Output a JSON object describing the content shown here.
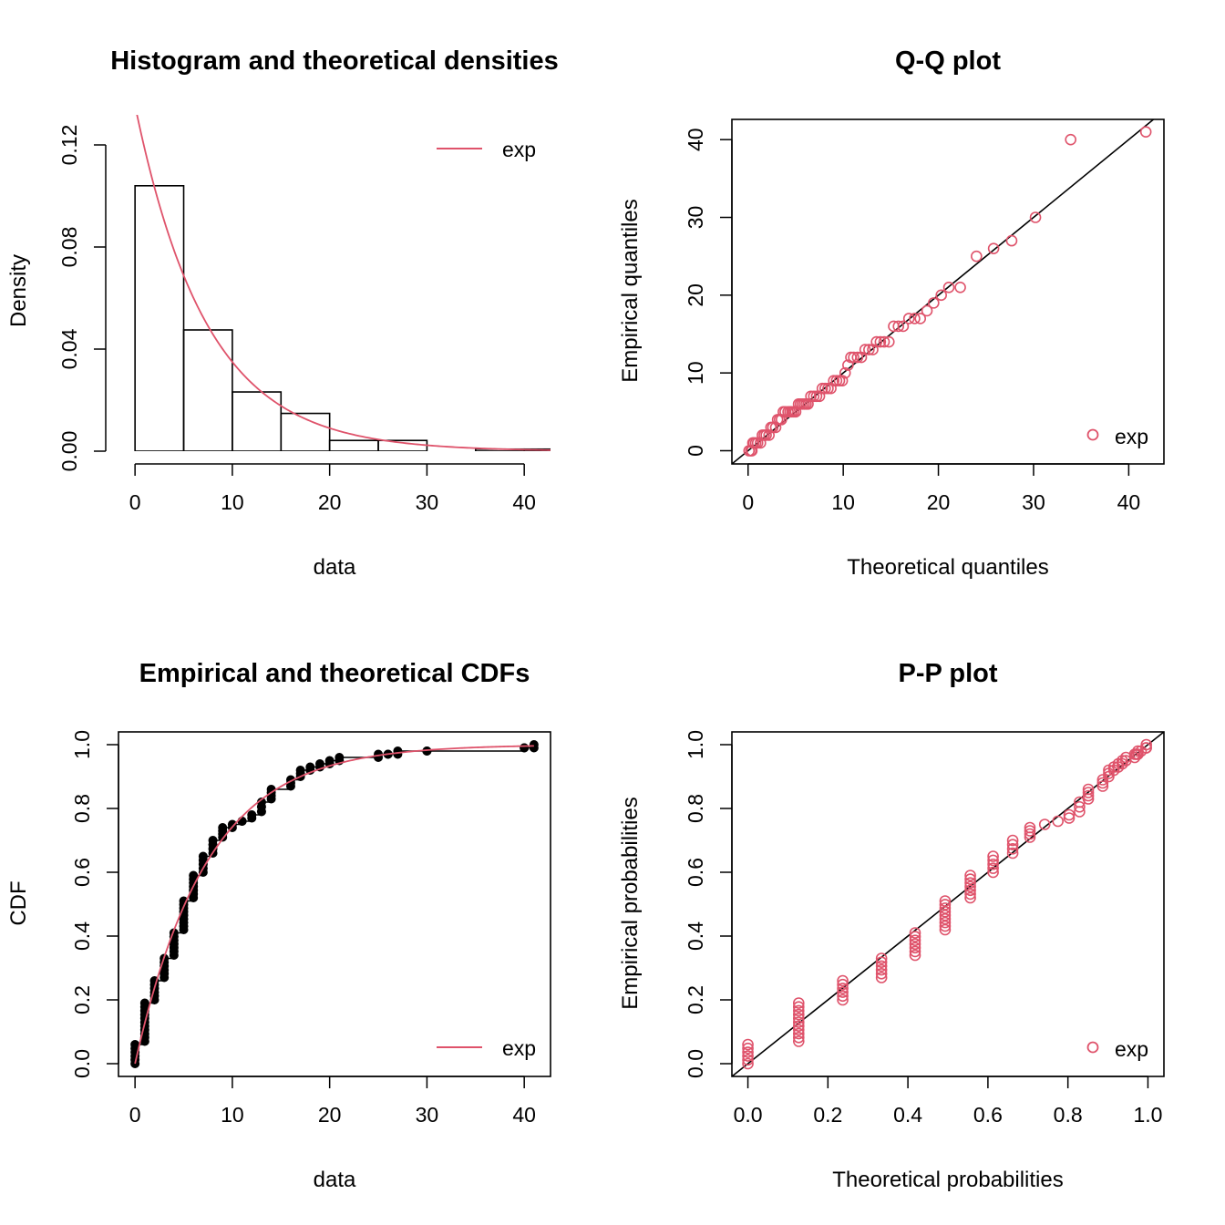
{
  "colors": {
    "fit": "#DF536B",
    "ink": "#000000",
    "background": "#FFFFFF"
  },
  "panels": [
    {
      "key": "hist",
      "title": "Histogram and theoretical densities",
      "xlabel": "data",
      "ylabel": "Density",
      "legend": "exp"
    },
    {
      "key": "qq",
      "title": "Q-Q plot",
      "xlabel": "Theoretical quantiles",
      "ylabel": "Empirical quantiles",
      "legend": "exp"
    },
    {
      "key": "cdf",
      "title": "Empirical and theoretical CDFs",
      "xlabel": "data",
      "ylabel": "CDF",
      "legend": "exp"
    },
    {
      "key": "pp",
      "title": "P-P plot",
      "xlabel": "Theoretical probabilities",
      "ylabel": "Empirical probabilities",
      "legend": "exp"
    }
  ],
  "chart_data": [
    {
      "panel": "hist",
      "type": "bar",
      "title": "Histogram and theoretical densities",
      "xlabel": "data",
      "ylabel": "Density",
      "xlim": [
        -1.7,
        42.7
      ],
      "ylim": [
        0,
        0.13
      ],
      "xticks": [
        "0",
        "10",
        "20",
        "30",
        "40"
      ],
      "xtick_values": [
        0,
        10,
        20,
        30,
        40
      ],
      "yticks": [
        "0.00",
        "0.04",
        "0.08",
        "0.12"
      ],
      "ytick_values": [
        0,
        0.04,
        0.08,
        0.12
      ],
      "bin_edges": [
        0,
        5,
        10,
        15,
        20,
        25,
        30,
        35,
        40,
        45
      ],
      "values": [
        0.104,
        0.0475,
        0.0232,
        0.0148,
        0.0042,
        0.0042,
        0.0,
        0.0008,
        0.0008
      ],
      "legend": "exp",
      "legend_position": "top-right",
      "curve": {
        "name": "exp",
        "distribution": "exponential",
        "rate": 0.1355
      }
    },
    {
      "panel": "qq",
      "type": "scatter",
      "title": "Q-Q plot",
      "xlabel": "Theoretical quantiles",
      "ylabel": "Empirical quantiles",
      "xlim": [
        -1.7,
        43.7
      ],
      "ylim": [
        -1.7,
        42.6
      ],
      "xticks": [
        "0",
        "10",
        "20",
        "30",
        "40"
      ],
      "xtick_values": [
        0,
        10,
        20,
        30,
        40
      ],
      "yticks": [
        "0",
        "10",
        "20",
        "30",
        "40"
      ],
      "ytick_values": [
        0,
        10,
        20,
        30,
        40
      ],
      "legend": "exp",
      "legend_position": "bottom-right",
      "reference_line": "y = x",
      "points": [
        [
          0.1,
          0
        ],
        [
          0.3,
          0
        ],
        [
          0.4,
          0
        ],
        [
          0.5,
          1
        ],
        [
          0.6,
          1
        ],
        [
          0.8,
          1
        ],
        [
          1.0,
          1
        ],
        [
          1.3,
          1
        ],
        [
          1.5,
          2
        ],
        [
          1.7,
          2
        ],
        [
          1.9,
          2
        ],
        [
          2.2,
          2
        ],
        [
          2.4,
          3
        ],
        [
          2.6,
          3
        ],
        [
          2.9,
          3
        ],
        [
          3.1,
          4
        ],
        [
          3.3,
          4
        ],
        [
          3.5,
          4
        ],
        [
          3.7,
          5
        ],
        [
          3.9,
          5
        ],
        [
          4.2,
          5
        ],
        [
          4.4,
          5
        ],
        [
          4.6,
          5
        ],
        [
          4.8,
          5
        ],
        [
          5.0,
          5
        ],
        [
          5.3,
          6
        ],
        [
          5.5,
          6
        ],
        [
          5.7,
          6
        ],
        [
          5.9,
          6
        ],
        [
          6.1,
          6
        ],
        [
          6.3,
          6
        ],
        [
          6.6,
          7
        ],
        [
          6.9,
          7
        ],
        [
          7.2,
          7
        ],
        [
          7.5,
          7
        ],
        [
          7.8,
          8
        ],
        [
          8.1,
          8
        ],
        [
          8.4,
          8
        ],
        [
          8.7,
          8
        ],
        [
          9.0,
          9
        ],
        [
          9.3,
          9
        ],
        [
          9.6,
          9
        ],
        [
          9.9,
          9
        ],
        [
          10.2,
          10
        ],
        [
          10.5,
          11
        ],
        [
          10.8,
          12
        ],
        [
          11.1,
          12
        ],
        [
          11.5,
          12
        ],
        [
          11.9,
          12
        ],
        [
          12.3,
          13
        ],
        [
          12.7,
          13
        ],
        [
          13.1,
          13
        ],
        [
          13.5,
          14
        ],
        [
          13.9,
          14
        ],
        [
          14.3,
          14
        ],
        [
          14.8,
          14
        ],
        [
          15.3,
          16
        ],
        [
          15.8,
          16
        ],
        [
          16.3,
          16
        ],
        [
          16.9,
          17
        ],
        [
          17.5,
          17
        ],
        [
          18.1,
          17
        ],
        [
          18.8,
          18
        ],
        [
          19.5,
          19
        ],
        [
          20.3,
          20
        ],
        [
          21.1,
          21
        ],
        [
          22.3,
          21
        ],
        [
          24.0,
          25
        ],
        [
          25.8,
          26
        ],
        [
          27.7,
          27
        ],
        [
          30.2,
          30
        ],
        [
          33.9,
          40
        ],
        [
          41.8,
          41
        ]
      ]
    },
    {
      "panel": "cdf",
      "type": "line",
      "title": "Empirical and theoretical CDFs",
      "xlabel": "data",
      "ylabel": "CDF",
      "xlim": [
        -1.7,
        42.7
      ],
      "ylim": [
        -0.04,
        1.04
      ],
      "xticks": [
        "0",
        "10",
        "20",
        "30",
        "40"
      ],
      "xtick_values": [
        0,
        10,
        20,
        30,
        40
      ],
      "yticks": [
        "0.0",
        "0.2",
        "0.4",
        "0.6",
        "0.8",
        "1.0"
      ],
      "ytick_values": [
        0,
        0.2,
        0.4,
        0.6,
        0.8,
        1.0
      ],
      "legend": "exp",
      "legend_position": "bottom-right",
      "empirical_steps": [
        [
          0,
          0.0,
          0.06
        ],
        [
          1,
          0.07,
          0.19
        ],
        [
          2,
          0.2,
          0.26
        ],
        [
          3,
          0.27,
          0.33
        ],
        [
          4,
          0.34,
          0.41
        ],
        [
          5,
          0.42,
          0.51
        ],
        [
          6,
          0.52,
          0.59
        ],
        [
          7,
          0.6,
          0.65
        ],
        [
          8,
          0.66,
          0.7
        ],
        [
          9,
          0.71,
          0.74
        ],
        [
          10,
          0.74,
          0.75
        ],
        [
          11,
          0.76,
          0.76
        ],
        [
          12,
          0.77,
          0.78
        ],
        [
          13,
          0.79,
          0.82
        ],
        [
          14,
          0.83,
          0.86
        ],
        [
          16,
          0.87,
          0.89
        ],
        [
          17,
          0.9,
          0.92
        ],
        [
          18,
          0.92,
          0.93
        ],
        [
          19,
          0.93,
          0.94
        ],
        [
          20,
          0.94,
          0.95
        ],
        [
          21,
          0.95,
          0.96
        ],
        [
          25,
          0.96,
          0.97
        ],
        [
          26,
          0.97,
          0.97
        ],
        [
          27,
          0.97,
          0.98
        ],
        [
          30,
          0.98,
          0.98
        ],
        [
          40,
          0.99,
          0.99
        ],
        [
          41,
          0.99,
          1.0
        ]
      ],
      "curve": {
        "name": "exp",
        "distribution": "exponential",
        "rate": 0.1355
      }
    },
    {
      "panel": "pp",
      "type": "scatter",
      "title": "P-P plot",
      "xlabel": "Theoretical probabilities",
      "ylabel": "Empirical probabilities",
      "xlim": [
        -0.04,
        1.04
      ],
      "ylim": [
        -0.04,
        1.04
      ],
      "xticks": [
        "0.0",
        "0.2",
        "0.4",
        "0.6",
        "0.8",
        "1.0"
      ],
      "xtick_values": [
        0,
        0.2,
        0.4,
        0.6,
        0.8,
        1.0
      ],
      "yticks": [
        "0.0",
        "0.2",
        "0.4",
        "0.6",
        "0.8",
        "1.0"
      ],
      "ytick_values": [
        0,
        0.2,
        0.4,
        0.6,
        0.8,
        1.0
      ],
      "legend": "exp",
      "legend_position": "bottom-right",
      "reference_line": "y = x",
      "groups": [
        [
          0.0,
          0.0,
          0.06
        ],
        [
          0.127,
          0.07,
          0.19
        ],
        [
          0.237,
          0.2,
          0.26
        ],
        [
          0.334,
          0.27,
          0.33
        ],
        [
          0.418,
          0.34,
          0.41
        ],
        [
          0.493,
          0.42,
          0.51
        ],
        [
          0.556,
          0.52,
          0.59
        ],
        [
          0.613,
          0.6,
          0.65
        ],
        [
          0.662,
          0.66,
          0.7
        ],
        [
          0.705,
          0.71,
          0.74
        ],
        [
          0.742,
          0.75,
          0.75
        ],
        [
          0.775,
          0.76,
          0.76
        ],
        [
          0.803,
          0.77,
          0.78
        ],
        [
          0.829,
          0.79,
          0.82
        ],
        [
          0.851,
          0.83,
          0.86
        ],
        [
          0.887,
          0.87,
          0.89
        ],
        [
          0.902,
          0.9,
          0.92
        ],
        [
          0.915,
          0.92,
          0.93
        ],
        [
          0.926,
          0.93,
          0.94
        ],
        [
          0.936,
          0.94,
          0.95
        ],
        [
          0.945,
          0.95,
          0.96
        ],
        [
          0.967,
          0.96,
          0.97
        ],
        [
          0.971,
          0.97,
          0.97
        ],
        [
          0.975,
          0.97,
          0.98
        ],
        [
          0.983,
          0.98,
          0.98
        ],
        [
          0.995,
          0.99,
          0.99
        ],
        [
          0.996,
          0.99,
          1.0
        ]
      ]
    }
  ]
}
